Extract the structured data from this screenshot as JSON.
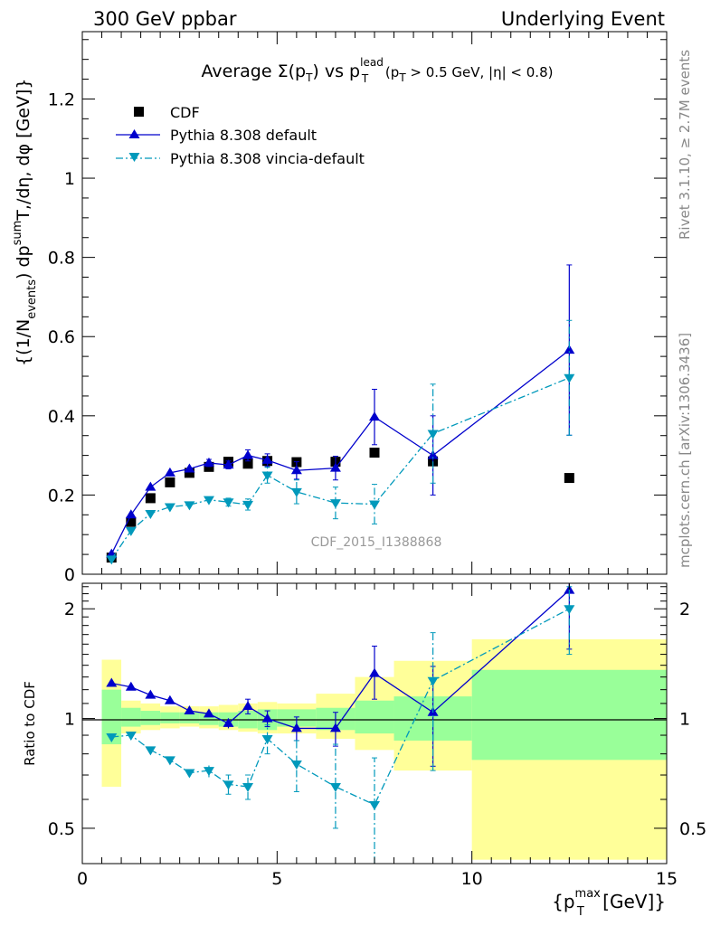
{
  "header": {
    "left": "300 GeV ppbar",
    "right": "Underlying Event"
  },
  "side_labels": {
    "rivet": "Rivet 3.1.10, ≥ 2.7M events",
    "mcplots": "mcplots.cern.ch [arXiv:1306.3436]"
  },
  "chart_data": [
    {
      "type": "scatter",
      "panel": "main",
      "title_parts": {
        "lead": "Average ",
        "sigma": "Σ(p",
        "sub_t": "T",
        "close": ")",
        "vs": " vs p",
        "sup_lead": "lead",
        "cut_open": " (p",
        "cut_rest": " > 0.5 GeV, |η| < 0.8)"
      },
      "ylabel_parts": {
        "a": "{(1/N",
        "sub_events": "events",
        "b": ") dp",
        "sup_sum": "sum",
        "c": "T,",
        "d": "/dη, dφ [GeV]}"
      },
      "watermark": "CDF_2015_I1388868",
      "xlim": [
        0,
        15
      ],
      "ylim": [
        0,
        1.37
      ],
      "yticks": [
        0,
        0.2,
        0.4,
        0.6,
        0.8,
        1,
        1.2
      ],
      "ytick_labels": [
        "0",
        "0.2",
        "0.4",
        "0.6",
        "0.8",
        "1",
        "1.2"
      ],
      "legend_position": "top-left",
      "series": [
        {
          "name": "CDF",
          "style": "marker",
          "color": "#000000",
          "marker": "square",
          "x": [
            0.75,
            1.25,
            1.75,
            2.25,
            2.75,
            3.25,
            3.75,
            4.25,
            4.75,
            5.5,
            6.5,
            7.5,
            9.0,
            12.5
          ],
          "y": [
            0.042,
            0.132,
            0.192,
            0.232,
            0.256,
            0.271,
            0.284,
            0.279,
            0.286,
            0.283,
            0.284,
            0.307,
            0.285,
            0.243
          ]
        },
        {
          "name": "Pythia 8.308 default",
          "style": "solid",
          "color": "#0000cc",
          "marker": "triangle-up",
          "x": [
            0.75,
            1.25,
            1.75,
            2.25,
            2.75,
            3.25,
            3.75,
            4.25,
            4.75,
            5.5,
            6.5,
            7.5,
            9.0,
            12.5
          ],
          "y": [
            0.051,
            0.15,
            0.22,
            0.256,
            0.266,
            0.281,
            0.276,
            0.3,
            0.288,
            0.262,
            0.268,
            0.397,
            0.3,
            0.566
          ],
          "err": [
            0.004,
            0.006,
            0.006,
            0.007,
            0.007,
            0.009,
            0.01,
            0.014,
            0.016,
            0.022,
            0.03,
            0.07,
            0.1,
            0.215
          ]
        },
        {
          "name": "Pythia 8.308 vincia-default",
          "style": "dashdot",
          "color": "#0099bb",
          "marker": "triangle-down",
          "x": [
            0.75,
            1.25,
            1.75,
            2.25,
            2.75,
            3.25,
            3.75,
            4.25,
            4.75,
            5.5,
            6.5,
            7.5,
            9.0,
            12.5
          ],
          "y": [
            0.038,
            0.11,
            0.153,
            0.17,
            0.175,
            0.188,
            0.182,
            0.176,
            0.25,
            0.208,
            0.18,
            0.177,
            0.355,
            0.496
          ],
          "err": [
            0.003,
            0.005,
            0.006,
            0.006,
            0.006,
            0.008,
            0.01,
            0.014,
            0.02,
            0.03,
            0.04,
            0.05,
            0.125,
            0.145
          ]
        }
      ]
    },
    {
      "type": "scatter",
      "panel": "ratio",
      "xlabel_parts": {
        "a": "{p",
        "sup": "max",
        "sub": "T",
        "b": " [GeV]}"
      },
      "ylabel": "Ratio to CDF",
      "xlim": [
        0,
        15
      ],
      "ylim": [
        0.4,
        2.35
      ],
      "ylog": true,
      "xticks": [
        0,
        5,
        10,
        15
      ],
      "xtick_labels": [
        "0",
        "5",
        "10",
        "15"
      ],
      "yticks": [
        0.5,
        1,
        2
      ],
      "ytick_labels": [
        "0.5",
        "1",
        "2"
      ],
      "bands": {
        "edges": [
          0.5,
          1.0,
          1.5,
          2.0,
          2.5,
          3.0,
          3.5,
          4.0,
          4.5,
          5.0,
          6.0,
          7.0,
          8.0,
          10.0,
          15.0
        ],
        "inner_color": "#99ff99",
        "outer_color": "#ffff99",
        "inner_lo": [
          0.85,
          0.95,
          0.96,
          0.97,
          0.97,
          0.96,
          0.95,
          0.94,
          0.93,
          0.95,
          0.93,
          0.91,
          0.87,
          0.77
        ],
        "inner_hi": [
          1.2,
          1.07,
          1.05,
          1.04,
          1.04,
          1.04,
          1.04,
          1.05,
          1.06,
          1.06,
          1.07,
          1.12,
          1.15,
          1.36
        ],
        "outer_lo": [
          0.65,
          0.91,
          0.93,
          0.94,
          0.95,
          0.94,
          0.93,
          0.92,
          0.91,
          0.91,
          0.88,
          0.82,
          0.72,
          0.41
        ],
        "outer_hi": [
          1.45,
          1.12,
          1.1,
          1.08,
          1.08,
          1.08,
          1.09,
          1.1,
          1.11,
          1.1,
          1.17,
          1.3,
          1.44,
          1.65
        ]
      },
      "series": [
        {
          "name": "Pythia 8.308 default",
          "style": "solid",
          "color": "#0000cc",
          "marker": "triangle-up",
          "x": [
            0.75,
            1.25,
            1.75,
            2.25,
            2.75,
            3.25,
            3.75,
            4.25,
            4.75,
            5.5,
            6.5,
            7.5,
            9.0,
            12.5
          ],
          "y": [
            1.25,
            1.22,
            1.16,
            1.12,
            1.05,
            1.03,
            0.97,
            1.08,
            1.0,
            0.94,
            0.94,
            1.33,
            1.04,
            2.25
          ],
          "err_lo": [
            0.02,
            0.02,
            0.02,
            0.02,
            0.02,
            0.02,
            0.03,
            0.05,
            0.05,
            0.07,
            0.1,
            0.2,
            0.3,
            0.7
          ],
          "err_hi": [
            0.02,
            0.02,
            0.02,
            0.02,
            0.02,
            0.02,
            0.03,
            0.05,
            0.05,
            0.07,
            0.1,
            0.25,
            0.35,
            0.1
          ]
        },
        {
          "name": "Pythia 8.308 vincia-default",
          "style": "dashdot",
          "color": "#0099bb",
          "marker": "triangle-down",
          "x": [
            0.75,
            1.25,
            1.75,
            2.25,
            2.75,
            3.25,
            3.75,
            4.25,
            4.75,
            5.5,
            6.5,
            7.5,
            9.0,
            12.5
          ],
          "y": [
            0.89,
            0.9,
            0.82,
            0.77,
            0.71,
            0.72,
            0.66,
            0.65,
            0.88,
            0.75,
            0.65,
            0.58,
            1.27,
            2.0
          ],
          "err_lo": [
            0.01,
            0.02,
            0.02,
            0.02,
            0.02,
            0.03,
            0.04,
            0.05,
            0.08,
            0.12,
            0.15,
            0.23,
            0.55,
            0.5
          ],
          "err_hi": [
            0.01,
            0.02,
            0.02,
            0.02,
            0.02,
            0.03,
            0.04,
            0.05,
            0.08,
            0.12,
            0.2,
            0.2,
            0.45,
            0.3
          ]
        }
      ]
    }
  ]
}
